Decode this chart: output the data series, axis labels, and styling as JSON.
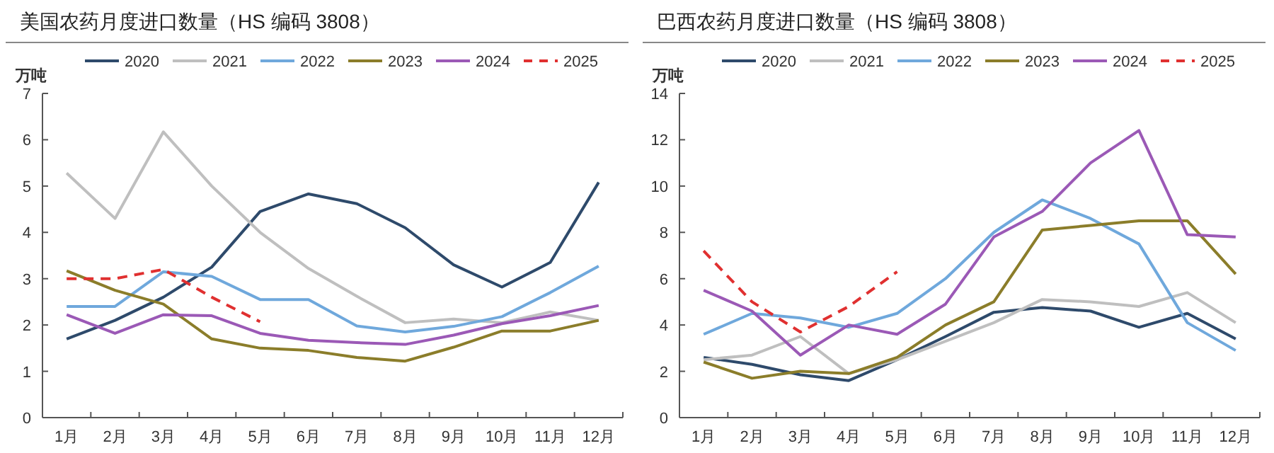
{
  "chart_data": [
    {
      "type": "line",
      "title": "美国农药月度进口数量（HS 编码 3808）",
      "ylabel": "万吨",
      "categories": [
        "1月",
        "2月",
        "3月",
        "4月",
        "5月",
        "6月",
        "7月",
        "8月",
        "9月",
        "10月",
        "11月",
        "12月"
      ],
      "ylim": [
        0,
        7
      ],
      "yticks": [
        0,
        1,
        2,
        3,
        4,
        5,
        6,
        7
      ],
      "legend": "top",
      "series": [
        {
          "name": "2020",
          "color": "#2e4a6b",
          "values": [
            1.7,
            2.1,
            2.6,
            3.25,
            4.45,
            4.83,
            4.62,
            4.1,
            3.3,
            2.82,
            3.35,
            5.08
          ]
        },
        {
          "name": "2021",
          "color": "#bfbfbf",
          "values": [
            5.28,
            4.3,
            6.17,
            5.0,
            4.0,
            3.22,
            2.62,
            2.05,
            2.13,
            2.05,
            2.28,
            2.1
          ]
        },
        {
          "name": "2022",
          "color": "#6fa8dc",
          "values": [
            2.4,
            2.4,
            3.15,
            3.05,
            2.55,
            2.55,
            1.98,
            1.85,
            1.97,
            2.18,
            2.7,
            3.27
          ]
        },
        {
          "name": "2023",
          "color": "#8b7d2a",
          "values": [
            3.17,
            2.75,
            2.45,
            1.7,
            1.5,
            1.45,
            1.3,
            1.22,
            1.52,
            1.87,
            1.87,
            2.1
          ]
        },
        {
          "name": "2024",
          "color": "#9b59b6",
          "values": [
            2.22,
            1.82,
            2.22,
            2.2,
            1.82,
            1.67,
            1.62,
            1.58,
            1.78,
            2.03,
            2.2,
            2.42
          ]
        },
        {
          "name": "2025",
          "color": "#e03030",
          "line_style": "dashed",
          "values": [
            3.0,
            3.0,
            3.2,
            2.6,
            2.07,
            null,
            null,
            null,
            null,
            null,
            null,
            null
          ]
        }
      ]
    },
    {
      "type": "line",
      "title": "巴西农药月度进口数量（HS 编码 3808）",
      "ylabel": "万吨",
      "categories": [
        "1月",
        "2月",
        "3月",
        "4月",
        "5月",
        "6月",
        "7月",
        "8月",
        "9月",
        "10月",
        "11月",
        "12月"
      ],
      "ylim": [
        0,
        14
      ],
      "yticks": [
        0,
        2,
        4,
        6,
        8,
        10,
        12,
        14
      ],
      "legend": "top",
      "series": [
        {
          "name": "2020",
          "color": "#2e4a6b",
          "values": [
            2.6,
            2.3,
            1.85,
            1.6,
            2.5,
            3.5,
            4.55,
            4.75,
            4.6,
            3.9,
            4.5,
            3.4
          ]
        },
        {
          "name": "2021",
          "color": "#bfbfbf",
          "values": [
            2.5,
            2.7,
            3.5,
            1.9,
            2.5,
            3.3,
            4.1,
            5.1,
            5.0,
            4.8,
            5.4,
            4.1
          ]
        },
        {
          "name": "2022",
          "color": "#6fa8dc",
          "values": [
            3.6,
            4.5,
            4.3,
            3.9,
            4.5,
            6.0,
            8.0,
            9.4,
            8.6,
            7.5,
            4.1,
            2.9
          ]
        },
        {
          "name": "2023",
          "color": "#8b7d2a",
          "values": [
            2.4,
            1.7,
            2.0,
            1.9,
            2.6,
            4.0,
            5.0,
            8.1,
            8.3,
            8.5,
            8.5,
            6.2
          ]
        },
        {
          "name": "2024",
          "color": "#9b59b6",
          "values": [
            5.5,
            4.6,
            2.7,
            4.0,
            3.6,
            4.9,
            7.8,
            8.9,
            11.0,
            12.4,
            7.9,
            7.8
          ]
        },
        {
          "name": "2025",
          "color": "#e03030",
          "line_style": "dashed",
          "values": [
            7.2,
            5.0,
            3.7,
            4.8,
            6.3,
            null,
            null,
            null,
            null,
            null,
            null,
            null
          ]
        }
      ]
    }
  ]
}
